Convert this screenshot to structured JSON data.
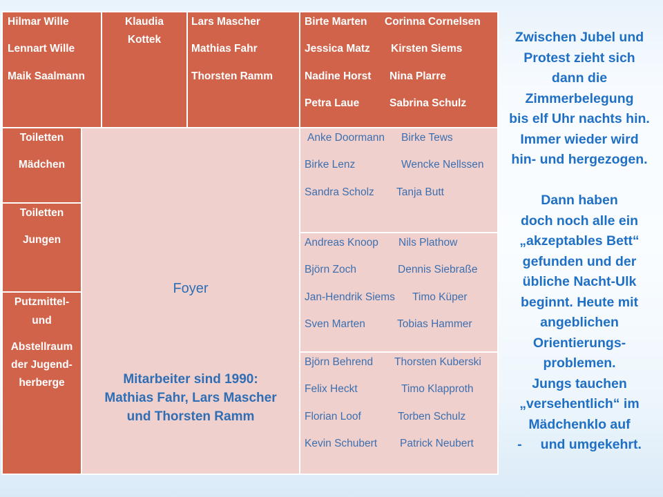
{
  "rooms_top": {
    "room1": [
      "Hilmar Wille",
      "Lennart Wille",
      "Maik Saalmann"
    ],
    "room2": [
      "Klaudia",
      "Kottek"
    ],
    "room3": [
      "Lars Mascher",
      "Mathias Fahr",
      "Thorsten Ramm"
    ],
    "room4": [
      [
        "Birte Marten",
        "Corinna Cornelsen"
      ],
      [
        "Jessica Matz",
        "Kirsten Siems"
      ],
      [
        "Nadine Horst",
        "Nina Plarre"
      ],
      [
        "Petra Laue",
        "Sabrina Schulz"
      ]
    ]
  },
  "left_rooms": {
    "toilets_girls": [
      "Toiletten",
      "Mädchen"
    ],
    "toilets_boys": [
      "Toiletten",
      "Jungen"
    ],
    "storage": [
      "Putzmittel-",
      "und",
      "Abstellraum",
      "der Jugend-",
      "herberge"
    ]
  },
  "foyer": {
    "label": "Foyer",
    "staff": [
      "Mitarbeiter sind 1990:",
      "Mathias Fahr, Lars Mascher",
      "und Thorsten Ramm"
    ]
  },
  "rooms_right": {
    "room_a": [
      [
        "Anke Doormann",
        "Birke Tews"
      ],
      [
        "Birke Lenz",
        "Wencke Nellssen"
      ],
      [
        "Sandra Scholz",
        "Tanja Butt"
      ]
    ],
    "room_b": [
      [
        "Andreas Knoop",
        "Nils Plathow"
      ],
      [
        "Björn Zoch",
        "Dennis Siebraße"
      ],
      [
        "Jan-Hendrik Siems",
        "Timo Küper"
      ],
      [
        "Sven Marten",
        "Tobias Hammer"
      ]
    ],
    "room_c": [
      [
        "Björn Behrend",
        "Thorsten Kuberski"
      ],
      [
        "Felix Heckt",
        "Timo Klapproth"
      ],
      [
        "Florian Loof",
        "Torben Schulz"
      ],
      [
        "Kevin Schubert",
        "Patrick Neubert"
      ]
    ]
  },
  "side_text": [
    "Zwischen Jubel und",
    "Protest zieht sich",
    "dann die",
    "Zimmerbelegung",
    "bis elf Uhr nachts hin.",
    "Immer wieder wird",
    "hin- und hergezogen.",
    "",
    "Dann haben",
    "doch noch alle ein",
    "„akzeptables Bett“",
    "gefunden und der",
    "übliche Nacht-Ulk",
    "beginnt. Heute mit",
    "angeblichen",
    "Orientierungs-",
    "problemen.",
    "Jungs tauchen",
    "„versehentlich“ im",
    "Mädchenklo auf",
    "-     und umgekehrt."
  ]
}
